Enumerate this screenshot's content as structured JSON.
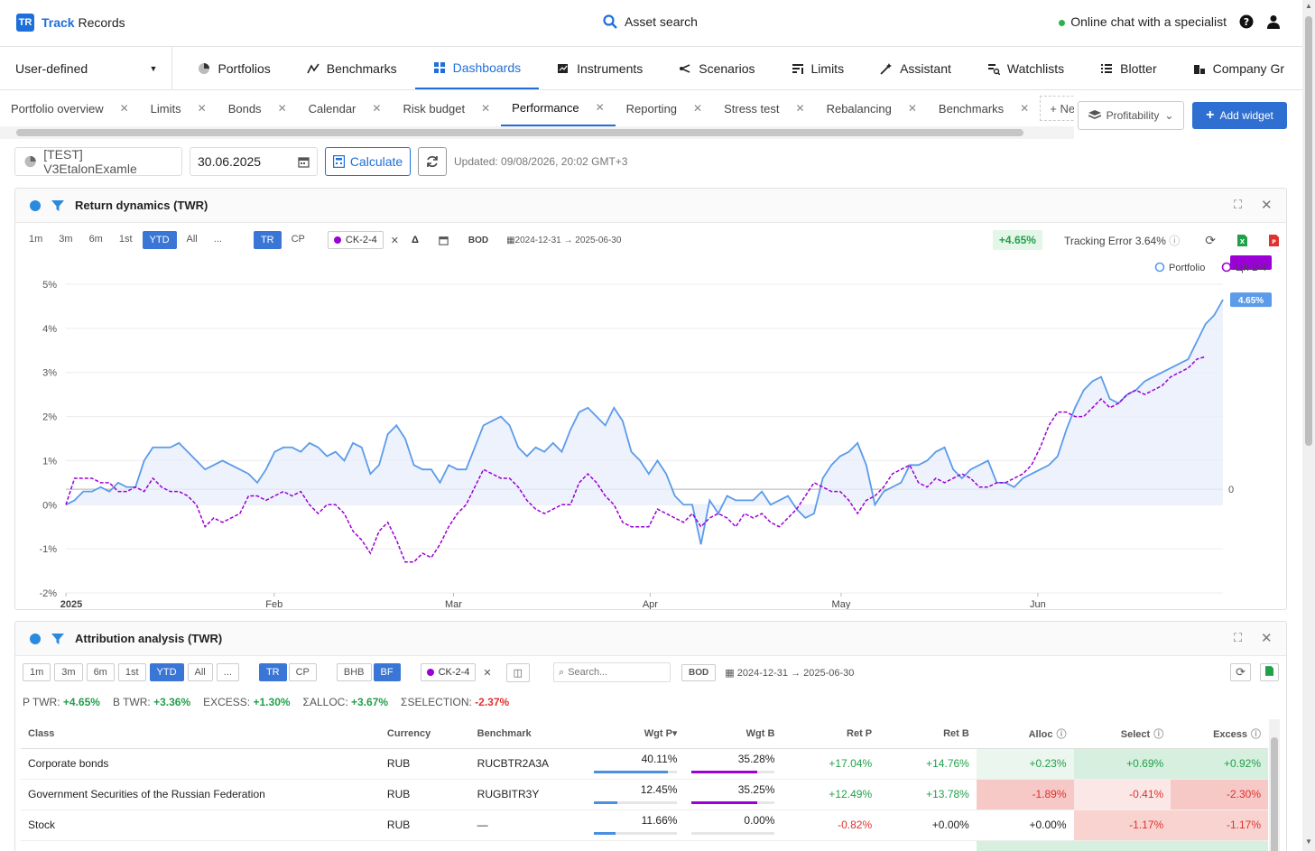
{
  "header": {
    "logo_mark": "TR",
    "brand_bold": "Track",
    "brand_rest": "Records",
    "search_label": "Asset search",
    "chat_label": "Online chat with a specialist"
  },
  "nav": {
    "portfolio_type": "User-defined",
    "items": [
      {
        "label": "Portfolios",
        "icon": "pie-icon"
      },
      {
        "label": "Benchmarks",
        "icon": "trend-icon"
      },
      {
        "label": "Dashboards",
        "icon": "grid-icon",
        "active": true
      },
      {
        "label": "Instruments",
        "icon": "instrument-icon"
      },
      {
        "label": "Scenarios",
        "icon": "branch-icon"
      },
      {
        "label": "Limits",
        "icon": "limits-icon"
      },
      {
        "label": "Assistant",
        "icon": "magic-icon"
      },
      {
        "label": "Watchlists",
        "icon": "watchlist-icon"
      },
      {
        "label": "Blotter",
        "icon": "list-icon"
      },
      {
        "label": "Company Gr",
        "icon": "building-icon"
      }
    ]
  },
  "tabs": [
    "Portfolio overview",
    "Limits",
    "Bonds",
    "Calendar",
    "Risk budget",
    "Performance",
    "Reporting",
    "Stress test",
    "Rebalancing",
    "Benchmarks"
  ],
  "active_tab": "Performance",
  "new_tab_label": "+ New t",
  "toolbar": {
    "profitability_label": "Profitability",
    "add_widget_label": "Add widget"
  },
  "controls": {
    "portfolio": "[TEST] V3EtalonExamle",
    "date": "30.06.2025",
    "calculate_label": "Calculate",
    "updated": "Updated: 09/08/2026, 20:02 GMT+3"
  },
  "widget1": {
    "title": "Return dynamics (TWR)",
    "periods": [
      "1m",
      "3m",
      "6m",
      "1st",
      "YTD",
      "All",
      "..."
    ],
    "active_period": "YTD",
    "modes": [
      "TR",
      "CP"
    ],
    "active_mode": "TR",
    "bench": "CK-2-4",
    "delta": "Δ",
    "bod": "BOD",
    "range": "2024-12-31 → 2025-06-30",
    "return_badge": "+4.65%",
    "tracking_label": "Tracking Error 3.64%"
  },
  "chart_data": {
    "type": "line",
    "title": "Return dynamics (TWR)",
    "x_ticks": [
      "2025",
      "Feb",
      "Mar",
      "Apr",
      "May",
      "Jun"
    ],
    "y_ticks": [
      "5%",
      "4%",
      "3%",
      "2%",
      "1%",
      "0%",
      "-1%",
      "-2%"
    ],
    "secondary_y_tick": "0",
    "ylim": [
      -2,
      5
    ],
    "legend": [
      "Portfolio",
      "ЦК-2-4"
    ],
    "legend_position": "top-right",
    "end_labels": [
      "4.65%",
      "3.36%"
    ],
    "series": [
      {
        "name": "Portfolio",
        "color": "#5b9bea",
        "values": [
          0,
          0.1,
          0.3,
          0.3,
          0.4,
          0.3,
          0.5,
          0.4,
          0.4,
          1.0,
          1.3,
          1.3,
          1.3,
          1.4,
          1.2,
          1.0,
          0.8,
          0.9,
          1.0,
          0.9,
          0.8,
          0.7,
          0.5,
          0.8,
          1.2,
          1.3,
          1.3,
          1.2,
          1.4,
          1.3,
          1.1,
          1.2,
          1.0,
          1.4,
          1.3,
          0.7,
          0.9,
          1.6,
          1.8,
          1.5,
          0.9,
          0.8,
          0.8,
          0.5,
          0.9,
          0.8,
          0.8,
          1.3,
          1.8,
          1.9,
          2.0,
          1.8,
          1.3,
          1.1,
          1.3,
          1.2,
          1.4,
          1.2,
          1.7,
          2.1,
          2.2,
          2.0,
          1.8,
          2.2,
          1.9,
          1.2,
          1.0,
          0.7,
          1.0,
          0.7,
          0.2,
          0.0,
          0.0,
          -0.9,
          0.1,
          -0.2,
          0.2,
          0.1,
          0.1,
          0.1,
          0.3,
          0.0,
          0.1,
          0.2,
          -0.1,
          -0.3,
          -0.2,
          0.6,
          0.9,
          1.1,
          1.2,
          1.4,
          0.9,
          0.0,
          0.3,
          0.4,
          0.5,
          0.9,
          0.9,
          1.0,
          1.2,
          1.3,
          0.8,
          0.6,
          0.8,
          0.9,
          1.0,
          0.5,
          0.5,
          0.4,
          0.6,
          0.7,
          0.8,
          0.9,
          1.1,
          1.7,
          2.2,
          2.6,
          2.8,
          2.9,
          2.4,
          2.3,
          2.5,
          2.6,
          2.8,
          2.9,
          3.0,
          3.1,
          3.2,
          3.3,
          3.7,
          4.1,
          4.3,
          4.65
        ]
      },
      {
        "name": "ЦК-2-4",
        "color": "#9b00d6",
        "values": [
          0,
          0.6,
          0.6,
          0.6,
          0.5,
          0.5,
          0.3,
          0.3,
          0.4,
          0.3,
          0.6,
          0.4,
          0.3,
          0.3,
          0.2,
          0.0,
          -0.5,
          -0.3,
          -0.4,
          -0.3,
          -0.2,
          0.2,
          0.2,
          0.1,
          0.2,
          0.3,
          0.2,
          0.3,
          0.0,
          -0.2,
          0.0,
          0.0,
          -0.2,
          -0.6,
          -0.8,
          -1.1,
          -0.6,
          -0.4,
          -0.8,
          -1.3,
          -1.3,
          -1.1,
          -1.2,
          -0.9,
          -0.5,
          -0.2,
          0.0,
          0.4,
          0.8,
          0.7,
          0.6,
          0.6,
          0.4,
          0.1,
          -0.1,
          -0.2,
          -0.1,
          0.0,
          0.0,
          0.5,
          0.7,
          0.5,
          0.2,
          0.0,
          -0.4,
          -0.5,
          -0.5,
          -0.5,
          -0.1,
          -0.2,
          -0.3,
          -0.4,
          -0.2,
          -0.5,
          -0.3,
          -0.2,
          -0.3,
          -0.5,
          -0.2,
          -0.3,
          -0.2,
          -0.4,
          -0.5,
          -0.3,
          -0.1,
          0.2,
          0.5,
          0.4,
          0.3,
          0.3,
          0.1,
          -0.2,
          0.1,
          0.2,
          0.4,
          0.7,
          0.8,
          0.9,
          0.5,
          0.4,
          0.6,
          0.5,
          0.6,
          0.7,
          0.6,
          0.4,
          0.4,
          0.5,
          0.5,
          0.6,
          0.7,
          0.9,
          1.3,
          1.8,
          2.1,
          2.1,
          2.0,
          2.0,
          2.2,
          2.4,
          2.2,
          2.3,
          2.5,
          2.6,
          2.5,
          2.6,
          2.7,
          2.9,
          3.0,
          3.1,
          3.3,
          3.36
        ]
      }
    ]
  },
  "widget2": {
    "title": "Attribution analysis (TWR)",
    "periods": [
      "1m",
      "3m",
      "6m",
      "1st",
      "YTD",
      "All",
      "..."
    ],
    "active_period": "YTD",
    "modes": [
      "TR",
      "CP"
    ],
    "active_mode": "TR",
    "method": [
      "BHB",
      "BF"
    ],
    "active_method": "BF",
    "bench": "CK-2-4",
    "search_placeholder": "Search...",
    "bod": "BOD",
    "range": "2024-12-31 → 2025-06-30",
    "stats": [
      {
        "label": "P TWR:",
        "value": "+4.65%",
        "pos": true
      },
      {
        "label": "B TWR:",
        "value": "+3.36%",
        "pos": true
      },
      {
        "label": "EXCESS:",
        "value": "+1.30%",
        "pos": true
      },
      {
        "label": "ΣALLOC:",
        "value": "+3.67%",
        "pos": true
      },
      {
        "label": "ΣSELECTION:",
        "value": "-2.37%",
        "pos": false
      }
    ],
    "columns": [
      "Class",
      "Currency",
      "Benchmark",
      "Wgt P▾",
      "Wgt B",
      "Ret P",
      "Ret B",
      "Alloc",
      "Select",
      "Excess"
    ],
    "rows": [
      {
        "class": "Corporate bonds",
        "currency": "RUB",
        "benchmark": "RUCBTR2A3A",
        "wgt_p": "40.11%",
        "wgt_p_frac": 0.4011,
        "wgt_b": "35.28%",
        "wgt_b_frac": 0.3528,
        "ret_p": "+17.04%",
        "ret_b": "+14.76%",
        "alloc": "+0.23%",
        "select": "+0.69%",
        "excess": "+0.92%"
      },
      {
        "class": "Government Securities of the Russian Federation",
        "currency": "RUB",
        "benchmark": "RUGBITR3Y",
        "wgt_p": "12.45%",
        "wgt_p_frac": 0.1245,
        "wgt_b": "35.25%",
        "wgt_b_frac": 0.3525,
        "ret_p": "+12.49%",
        "ret_b": "+13.78%",
        "alloc": "-1.89%",
        "select": "-0.41%",
        "excess": "-2.30%"
      },
      {
        "class": "Stock",
        "currency": "RUB",
        "benchmark": "—",
        "wgt_p": "11.66%",
        "wgt_p_frac": 0.1166,
        "wgt_b": "0.00%",
        "wgt_b_frac": 0,
        "ret_p": "-0.82%",
        "ret_b": "+0.00%",
        "alloc": "+0.00%",
        "select": "-1.17%",
        "excess": "-1.17%"
      }
    ]
  }
}
